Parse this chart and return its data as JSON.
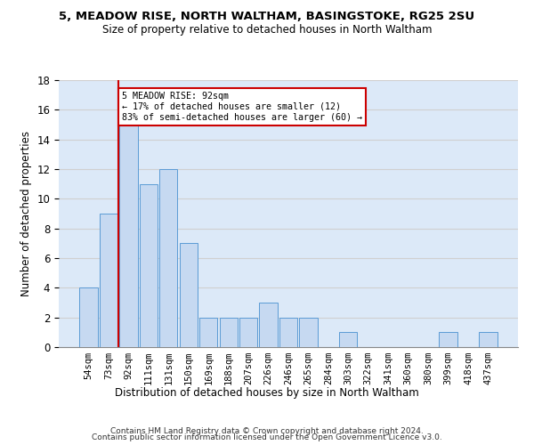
{
  "title1": "5, MEADOW RISE, NORTH WALTHAM, BASINGSTOKE, RG25 2SU",
  "title2": "Size of property relative to detached houses in North Waltham",
  "xlabel": "Distribution of detached houses by size in North Waltham",
  "ylabel": "Number of detached properties",
  "categories": [
    "54sqm",
    "73sqm",
    "92sqm",
    "111sqm",
    "131sqm",
    "150sqm",
    "169sqm",
    "188sqm",
    "207sqm",
    "226sqm",
    "246sqm",
    "265sqm",
    "284sqm",
    "303sqm",
    "322sqm",
    "341sqm",
    "360sqm",
    "380sqm",
    "399sqm",
    "418sqm",
    "437sqm"
  ],
  "values": [
    4,
    9,
    15,
    11,
    12,
    7,
    2,
    2,
    2,
    3,
    2,
    2,
    0,
    1,
    0,
    0,
    0,
    0,
    1,
    0,
    1
  ],
  "bar_color": "#c6d9f1",
  "bar_edge_color": "#5b9bd5",
  "red_line_x": 2,
  "annotation_text": "5 MEADOW RISE: 92sqm\n← 17% of detached houses are smaller (12)\n83% of semi-detached houses are larger (60) →",
  "annotation_box_color": "#ffffff",
  "annotation_box_edge_color": "#cc0000",
  "ylim": [
    0,
    18
  ],
  "yticks": [
    0,
    2,
    4,
    6,
    8,
    10,
    12,
    14,
    16,
    18
  ],
  "grid_color": "#d0d0d0",
  "background_color": "#dce9f8",
  "footer1": "Contains HM Land Registry data © Crown copyright and database right 2024.",
  "footer2": "Contains public sector information licensed under the Open Government Licence v3.0."
}
